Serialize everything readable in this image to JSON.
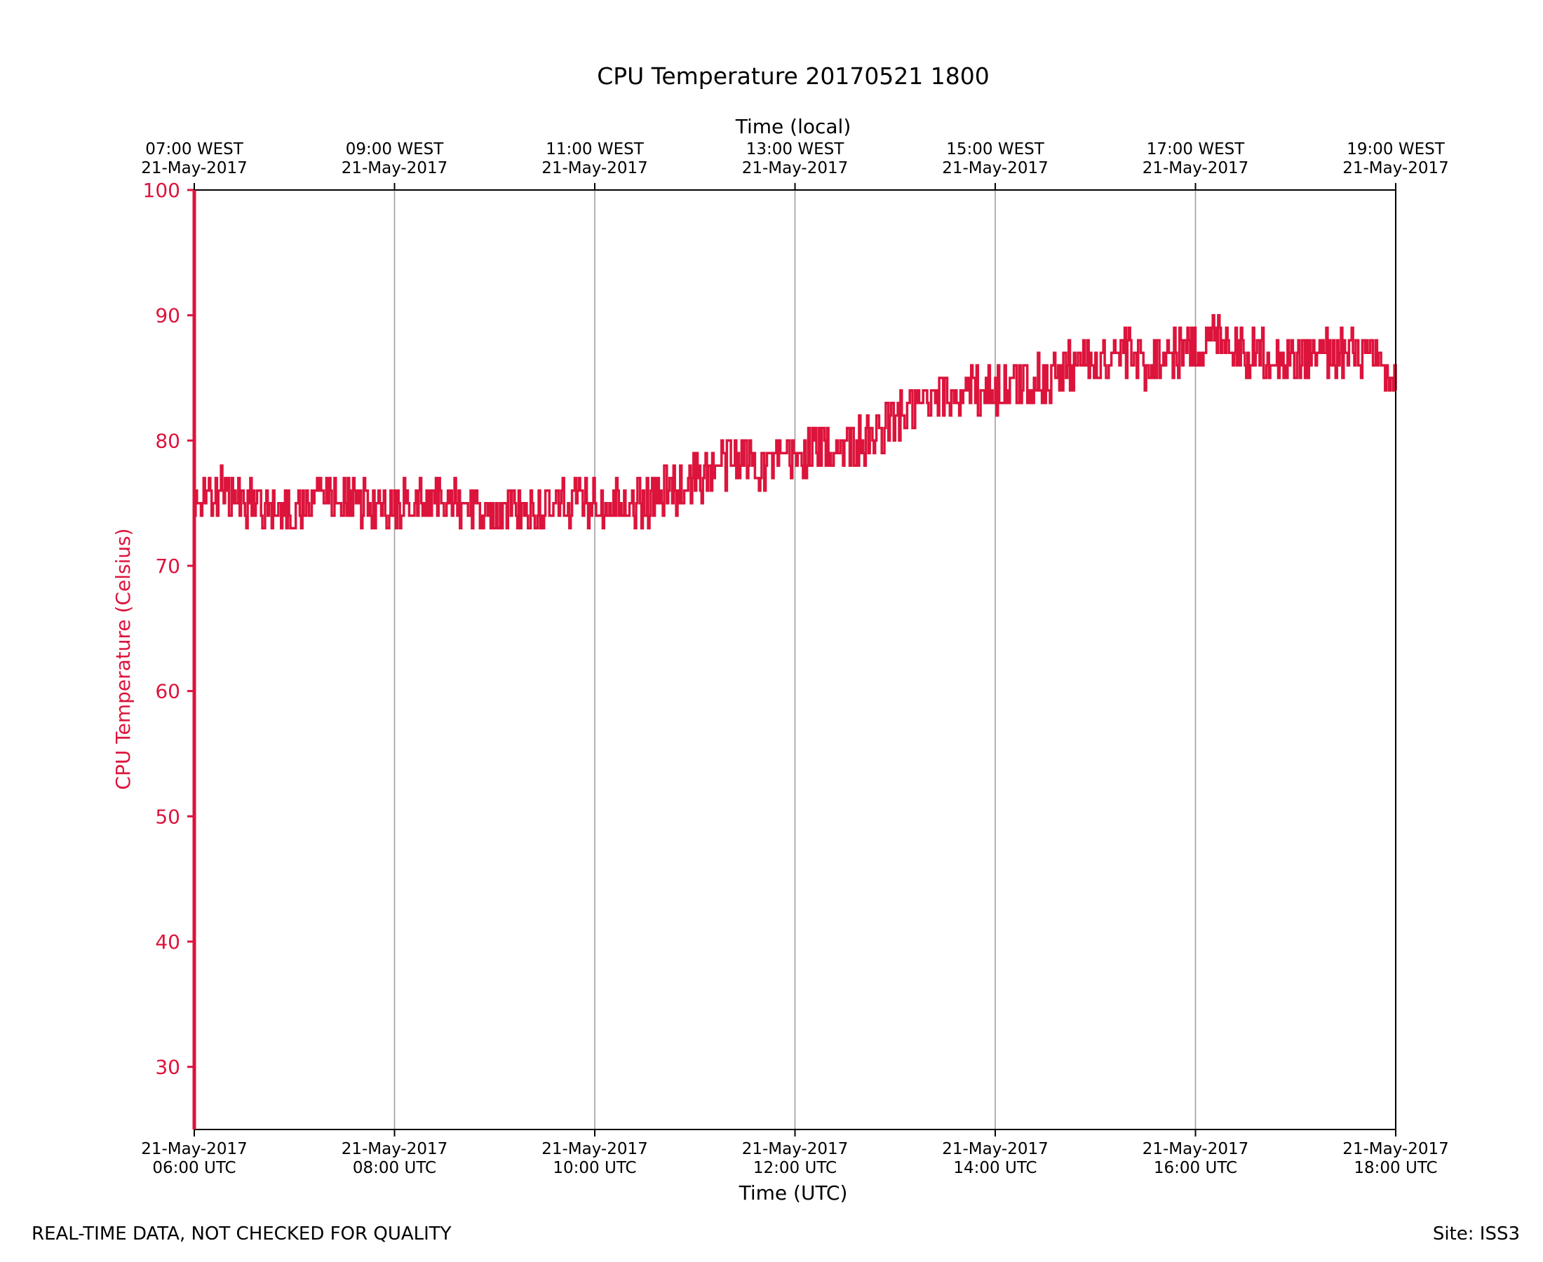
{
  "chart_data": {
    "type": "line",
    "title": "CPU Temperature 20170521 1800",
    "xlabel": "Time (UTC)",
    "x2label": "Time (local)",
    "ylabel": "CPU Temperature (Celsius)",
    "ylim": [
      25,
      100
    ],
    "yticks": [
      30,
      40,
      50,
      60,
      70,
      80,
      90,
      100
    ],
    "xlim_hours_utc": [
      6,
      18
    ],
    "grid": "vertical",
    "x_ticks": [
      {
        "hour_utc": 6,
        "utc_date": "21-May-2017",
        "utc_time": "06:00 UTC",
        "local_time": "07:00 WEST",
        "local_date": "21-May-2017"
      },
      {
        "hour_utc": 8,
        "utc_date": "21-May-2017",
        "utc_time": "08:00 UTC",
        "local_time": "09:00 WEST",
        "local_date": "21-May-2017"
      },
      {
        "hour_utc": 10,
        "utc_date": "21-May-2017",
        "utc_time": "10:00 UTC",
        "local_time": "11:00 WEST",
        "local_date": "21-May-2017"
      },
      {
        "hour_utc": 12,
        "utc_date": "21-May-2017",
        "utc_time": "12:00 UTC",
        "local_time": "13:00 WEST",
        "local_date": "21-May-2017"
      },
      {
        "hour_utc": 14,
        "utc_date": "21-May-2017",
        "utc_time": "14:00 UTC",
        "local_time": "15:00 WEST",
        "local_date": "21-May-2017"
      },
      {
        "hour_utc": 16,
        "utc_date": "21-May-2017",
        "utc_time": "16:00 UTC",
        "local_time": "17:00 WEST",
        "local_date": "21-May-2017"
      },
      {
        "hour_utc": 18,
        "utc_date": "21-May-2017",
        "utc_time": "18:00 UTC",
        "local_time": "19:00 WEST",
        "local_date": "21-May-2017"
      }
    ],
    "series": [
      {
        "name": "CPU Temperature",
        "color": "#DC143C",
        "x_hours_utc": [
          6.0,
          6.25,
          6.5,
          6.75,
          7.0,
          7.25,
          7.5,
          7.75,
          8.0,
          8.25,
          8.5,
          8.75,
          9.0,
          9.25,
          9.5,
          9.75,
          10.0,
          10.25,
          10.5,
          10.75,
          11.0,
          11.25,
          11.5,
          11.75,
          12.0,
          12.25,
          12.5,
          12.75,
          13.0,
          13.25,
          13.5,
          13.75,
          14.0,
          14.25,
          14.5,
          14.75,
          15.0,
          15.25,
          15.5,
          15.75,
          16.0,
          16.25,
          16.5,
          16.75,
          17.0,
          17.25,
          17.5,
          17.75,
          18.0
        ],
        "y_celsius": [
          75.0,
          76.0,
          75.0,
          75.0,
          74.0,
          75.5,
          75.5,
          75.0,
          74.5,
          75.5,
          75.5,
          75.0,
          74.5,
          74.5,
          74.5,
          75.0,
          75.0,
          75.5,
          75.0,
          76.0,
          77.0,
          78.0,
          78.5,
          78.0,
          78.5,
          79.5,
          79.5,
          80.0,
          81.5,
          82.5,
          83.5,
          84.0,
          84.0,
          84.5,
          85.0,
          86.0,
          86.5,
          87.0,
          86.0,
          87.0,
          87.5,
          88.5,
          87.0,
          87.0,
          86.5,
          87.0,
          87.0,
          86.5,
          84.0
        ],
        "noise_amplitude_celsius": 2.0
      }
    ]
  },
  "footer": {
    "quality_note": "REAL-TIME DATA, NOT CHECKED FOR QUALITY",
    "site": "Site: ISS3"
  }
}
